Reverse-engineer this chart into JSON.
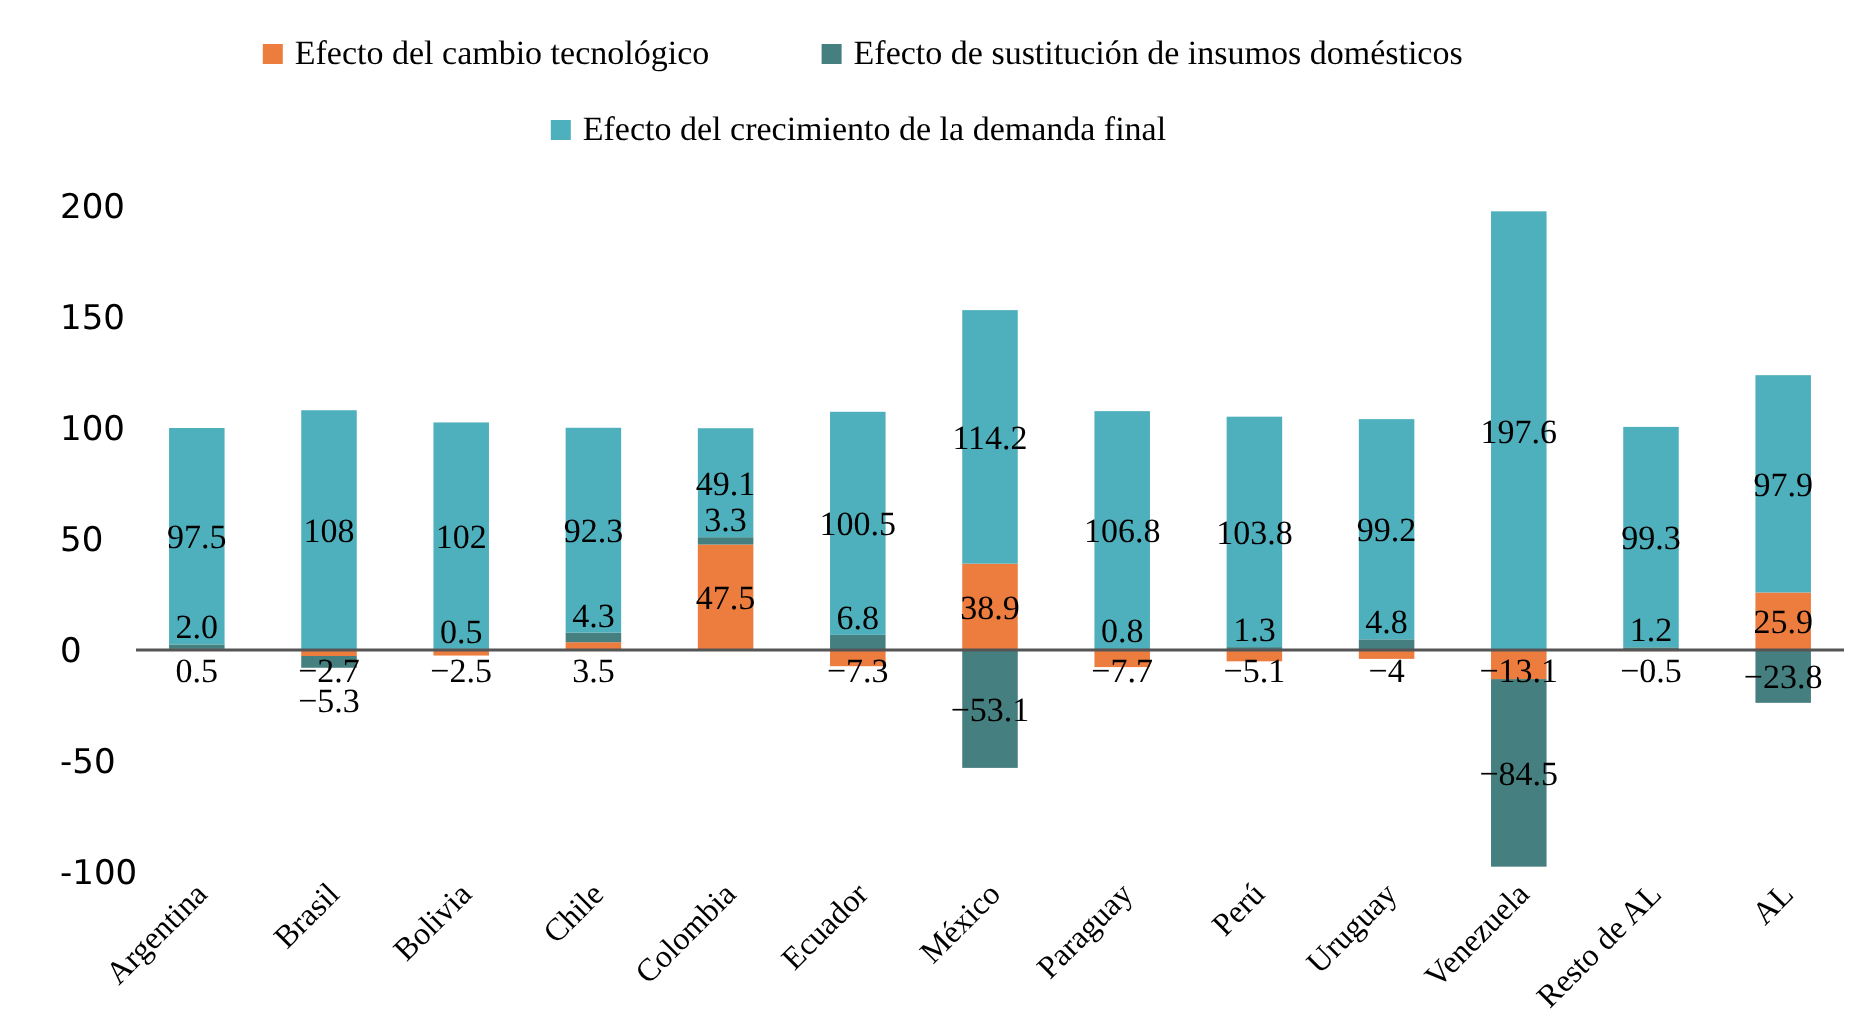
{
  "chart_data": {
    "type": "bar",
    "stacked": true,
    "legend": "top",
    "categories": [
      "Argentina",
      "Brasil",
      "Bolivia",
      "Chile",
      "Colombia",
      "Ecuador",
      "México",
      "Paraguay",
      "Perú",
      "Uruguay",
      "Venezuela",
      "Resto de AL",
      "AL"
    ],
    "series": [
      {
        "name": "Efecto del cambio tecnológico",
        "color": "#ed7d3f",
        "values": [
          0.5,
          -2.7,
          -2.5,
          3.5,
          47.5,
          -7.3,
          38.9,
          -7.7,
          -5.1,
          -4,
          -13.1,
          -0.5,
          25.9
        ],
        "value_labels": [
          "0.5",
          "−2.7",
          "−2.5",
          "3.5",
          "47.5",
          "−7.3",
          "38.9",
          "−7.7",
          "−5.1",
          "−4",
          "−13.1",
          "−0.5",
          "25.9"
        ]
      },
      {
        "name": "Efecto de sustitución de insumos domésticos",
        "color": "#467f7f",
        "values": [
          2.0,
          -5.3,
          0.5,
          4.3,
          3.3,
          6.8,
          -53.1,
          0.8,
          1.3,
          4.8,
          -84.5,
          1.2,
          -23.8
        ],
        "value_labels": [
          "2.0",
          "−5.3",
          "0.5",
          "4.3",
          "3.3",
          "6.8",
          "−53.1",
          "0.8",
          "1.3",
          "4.8",
          "−84.5",
          "1.2",
          "−23.8"
        ]
      },
      {
        "name": "Efecto del crecimiento de la demanda final",
        "color": "#4fb0bd",
        "values": [
          97.5,
          108,
          102,
          92.3,
          49.1,
          100.5,
          114.2,
          106.8,
          103.8,
          99.2,
          197.6,
          99.3,
          97.9
        ],
        "value_labels": [
          "97.5",
          "108",
          "102",
          "92.3",
          "49.1",
          "100.5",
          "114.2",
          "106.8",
          "103.8",
          "99.2",
          "197.6",
          "99.3",
          "97.9"
        ]
      }
    ],
    "ylim": [
      -100,
      200
    ],
    "yticks": [
      {
        "value": -100,
        "label": "-100"
      },
      {
        "value": -50,
        "label": "-50"
      },
      0,
      50,
      100,
      150,
      200
    ]
  }
}
